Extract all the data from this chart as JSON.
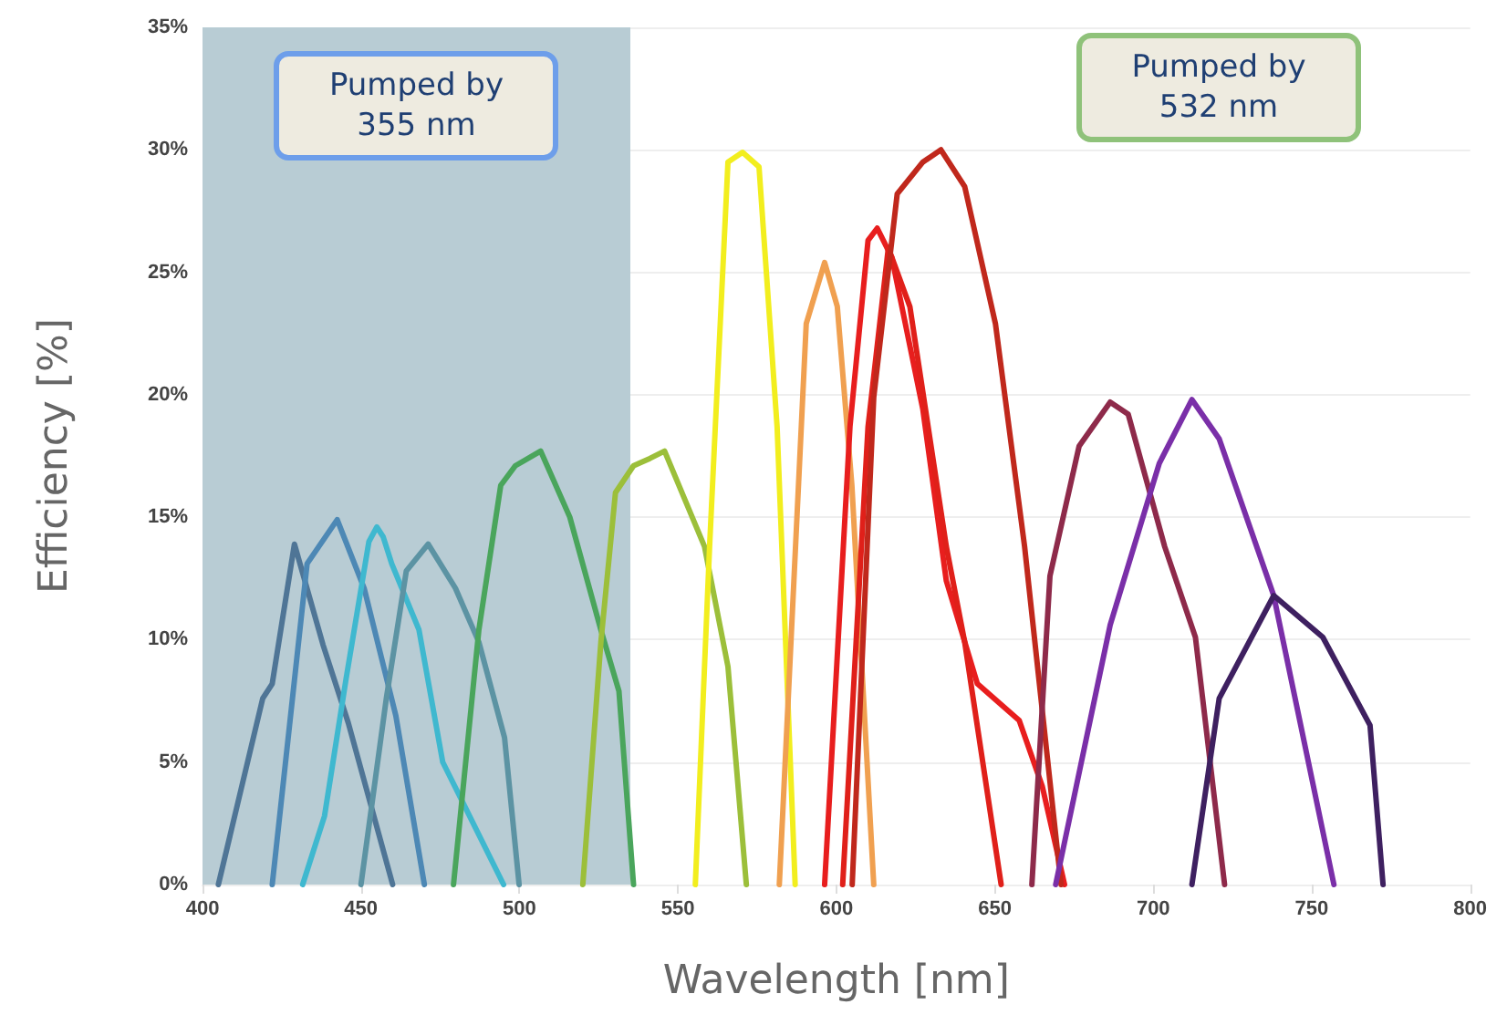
{
  "chart_data": {
    "type": "line",
    "xlabel": "Wavelength [nm]",
    "ylabel": "Efficiency [%]",
    "xlim": [
      400,
      800
    ],
    "xticks": [
      400,
      450,
      500,
      550,
      600,
      650,
      700,
      750,
      800
    ],
    "ylim": [
      0,
      35
    ],
    "yticks": [
      {
        "value": 0,
        "label": "0%"
      },
      {
        "value": 5,
        "label": "5%"
      },
      {
        "value": 10,
        "label": "10%"
      },
      {
        "value": 15,
        "label": "15%"
      },
      {
        "value": 20,
        "label": "20%"
      },
      {
        "value": 25,
        "label": "25%"
      },
      {
        "value": 30,
        "label": "30%"
      },
      {
        "value": 35,
        "label": "35%"
      }
    ],
    "grid": "y",
    "marker": "none",
    "line_style": "solid",
    "bands": [
      {
        "axis": "x",
        "from": 400,
        "to": 535,
        "label": "Pumped by 355 nm",
        "color": "#b8ccd4"
      }
    ],
    "annotations": [
      "Pumped by 532 nm"
    ],
    "series": [
      {
        "color": "#4f7596",
        "x": [
          405,
          419,
          422,
          429,
          438,
          446,
          460
        ],
        "values": [
          0,
          7.6,
          8.2,
          13.9,
          9.8,
          6.6,
          0
        ]
      },
      {
        "color": "#4d88b5",
        "x": [
          422,
          433,
          442.5,
          451,
          461,
          470
        ],
        "values": [
          0,
          13.1,
          14.9,
          12.1,
          6.9,
          0
        ]
      },
      {
        "color": "#3fb8cf",
        "x": [
          431.6,
          438.5,
          445.3,
          452.5,
          455,
          457,
          459.7,
          468.3,
          475.8,
          495
        ],
        "values": [
          0,
          2.8,
          8.4,
          14,
          14.6,
          14.2,
          13.1,
          10.4,
          5,
          0
        ]
      },
      {
        "color": "#5c93a3",
        "x": [
          450,
          458,
          464.3,
          471.2,
          479.8,
          487.2,
          495.3,
          499.9
        ],
        "values": [
          0,
          7.6,
          12.8,
          13.9,
          12.1,
          9.9,
          6,
          0
        ]
      },
      {
        "color": "#4aa55c",
        "x": [
          479.2,
          487.2,
          494.1,
          498.7,
          506.7,
          515.9,
          525.7,
          531.4,
          536
        ],
        "values": [
          0,
          10.4,
          16.3,
          17.1,
          17.7,
          15,
          10.4,
          7.9,
          0
        ]
      },
      {
        "color": "#9cbf3a",
        "x": [
          520,
          525.7,
          530.3,
          536,
          541.2,
          545.8,
          558.4,
          565.8,
          571.6
        ],
        "values": [
          0,
          9.9,
          16,
          17.1,
          17.4,
          17.7,
          13.8,
          8.9,
          0
        ]
      },
      {
        "color": "#f2ee1e",
        "x": [
          555.5,
          560,
          565.8,
          570.4,
          575.6,
          581.3,
          587
        ],
        "values": [
          0,
          13.8,
          29.5,
          29.9,
          29.3,
          18.7,
          0
        ]
      },
      {
        "color": "#f0a050",
        "x": [
          582,
          590.5,
          596.3,
          600.3,
          604.9,
          611.8
        ],
        "values": [
          0,
          22.9,
          25.4,
          23.6,
          16.3,
          0
        ]
      },
      {
        "color": "#e81e1e",
        "x": [
          596.3,
          604.3,
          610,
          612.9,
          617.5,
          627.3,
          634.7,
          644.5,
          657.7,
          665,
          672
        ],
        "values": [
          0,
          18.7,
          26.3,
          26.8,
          25.6,
          19.4,
          12.4,
          8.2,
          6.7,
          4,
          0
        ]
      },
      {
        "color": "#e0201a",
        "x": [
          602,
          610,
          616.4,
          623.2,
          634.7,
          640.5,
          652
        ],
        "values": [
          0,
          18.7,
          26,
          23.6,
          13.8,
          9.9,
          0
        ]
      },
      {
        "color": "#c0281c",
        "x": [
          605,
          611.8,
          619.2,
          627.3,
          633,
          640.5,
          650.2,
          659.4,
          670.9
        ],
        "values": [
          0,
          19.9,
          28.2,
          29.5,
          30,
          28.5,
          22.9,
          13.8,
          0
        ]
      },
      {
        "color": "#8e2a4a",
        "x": [
          661.7,
          667.4,
          676.6,
          686.4,
          692.1,
          703.6,
          713.3,
          722.5
        ],
        "values": [
          0,
          12.6,
          17.9,
          19.7,
          19.2,
          13.8,
          10.1,
          0
        ]
      },
      {
        "color": "#7a2fa8",
        "x": [
          669.2,
          686.4,
          701.9,
          712.2,
          720.8,
          738,
          757
        ],
        "values": [
          0,
          10.6,
          17.2,
          19.8,
          18.2,
          11.8,
          0
        ]
      },
      {
        "color": "#3e2060",
        "x": [
          712.2,
          720.8,
          738,
          753.5,
          768.4,
          772.5
        ],
        "values": [
          0,
          7.6,
          11.8,
          10.1,
          6.5,
          0
        ]
      }
    ]
  }
}
